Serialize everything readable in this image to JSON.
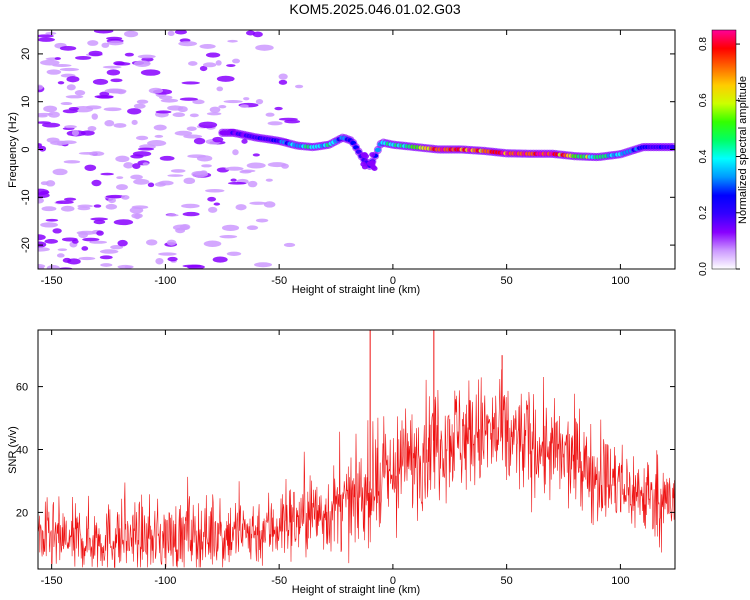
{
  "title": "KOM5.2025.046.01.02.G03",
  "colors": {
    "snr_line": "#ee1111",
    "colormap": [
      "#ffffff",
      "#cc99ff",
      "#8800ff",
      "#3300ff",
      "#0000ff",
      "#0099ff",
      "#00ffff",
      "#00ff66",
      "#33ff00",
      "#ccff00",
      "#ffcc00",
      "#ff6600",
      "#ff0000",
      "#ff0099"
    ]
  },
  "chart_data": [
    {
      "type": "heatmap",
      "title": "",
      "xlabel": "Height of straight line (km)",
      "ylabel": "Frequency (Hz)",
      "xlim": [
        -156,
        124
      ],
      "ylim": [
        -25,
        25
      ],
      "xticks": [
        "-150",
        "-100",
        "-50",
        "0",
        "50",
        "100"
      ],
      "xtick_values": [
        -150,
        -100,
        -50,
        0,
        50,
        100
      ],
      "yticks": [
        "-20",
        "-10",
        "0",
        "10",
        "20"
      ],
      "ytick_values": [
        -20,
        -10,
        0,
        10,
        20
      ],
      "colorbar": {
        "label": "Normalized spectral amplitude",
        "range": [
          0.0,
          0.85
        ],
        "ticks": [
          "0.0",
          "0.2",
          "0.4",
          "0.6",
          "0.8"
        ],
        "tick_values": [
          0.0,
          0.2,
          0.4,
          0.6,
          0.8
        ]
      },
      "ridge": {
        "x": [
          -70,
          -60,
          -50,
          -42,
          -35,
          -28,
          -22,
          -18,
          -13,
          -10,
          -5,
          0,
          10,
          20,
          30,
          40,
          50,
          60,
          70,
          80,
          90,
          100,
          110,
          120
        ],
        "frequency": [
          3.5,
          2.5,
          1.8,
          0.8,
          0.5,
          1.0,
          2.5,
          1.8,
          -2.0,
          -3.5,
          1.5,
          1.0,
          0.5,
          0.0,
          0.0,
          -0.3,
          -0.8,
          -0.9,
          -0.9,
          -1.4,
          -1.6,
          -1.0,
          0.5,
          0.5
        ],
        "amplitude": [
          0.15,
          0.2,
          0.25,
          0.35,
          0.4,
          0.4,
          0.3,
          0.25,
          0.2,
          0.2,
          0.35,
          0.4,
          0.5,
          0.75,
          0.8,
          0.7,
          0.78,
          0.82,
          0.8,
          0.55,
          0.45,
          0.35,
          0.25,
          0.2
        ]
      }
    },
    {
      "type": "line",
      "title": "",
      "xlabel": "Height of straight line (km)",
      "ylabel": "SNR (v/v)",
      "xlim": [
        -156,
        124
      ],
      "ylim": [
        2,
        78
      ],
      "xticks": [
        "-150",
        "-100",
        "-50",
        "0",
        "50",
        "100"
      ],
      "xtick_values": [
        -150,
        -100,
        -50,
        0,
        50,
        100
      ],
      "yticks": [
        "20",
        "40",
        "60"
      ],
      "ytick_values": [
        20,
        40,
        60
      ],
      "series": [
        {
          "envelope_x": [
            -156,
            -140,
            -120,
            -100,
            -80,
            -60,
            -40,
            -20,
            0,
            20,
            40,
            60,
            80,
            100,
            124
          ],
          "envelope_mean": [
            12,
            11,
            12,
            12,
            13,
            14,
            18,
            22,
            32,
            44,
            45,
            42,
            36,
            28,
            22
          ],
          "envelope_spread": [
            8,
            8,
            8,
            8,
            8,
            8,
            9,
            10,
            12,
            13,
            13,
            12,
            11,
            10,
            9
          ],
          "peaks_x": [
            -10,
            18,
            48
          ],
          "peaks_y": [
            78,
            78,
            70
          ]
        }
      ]
    }
  ]
}
